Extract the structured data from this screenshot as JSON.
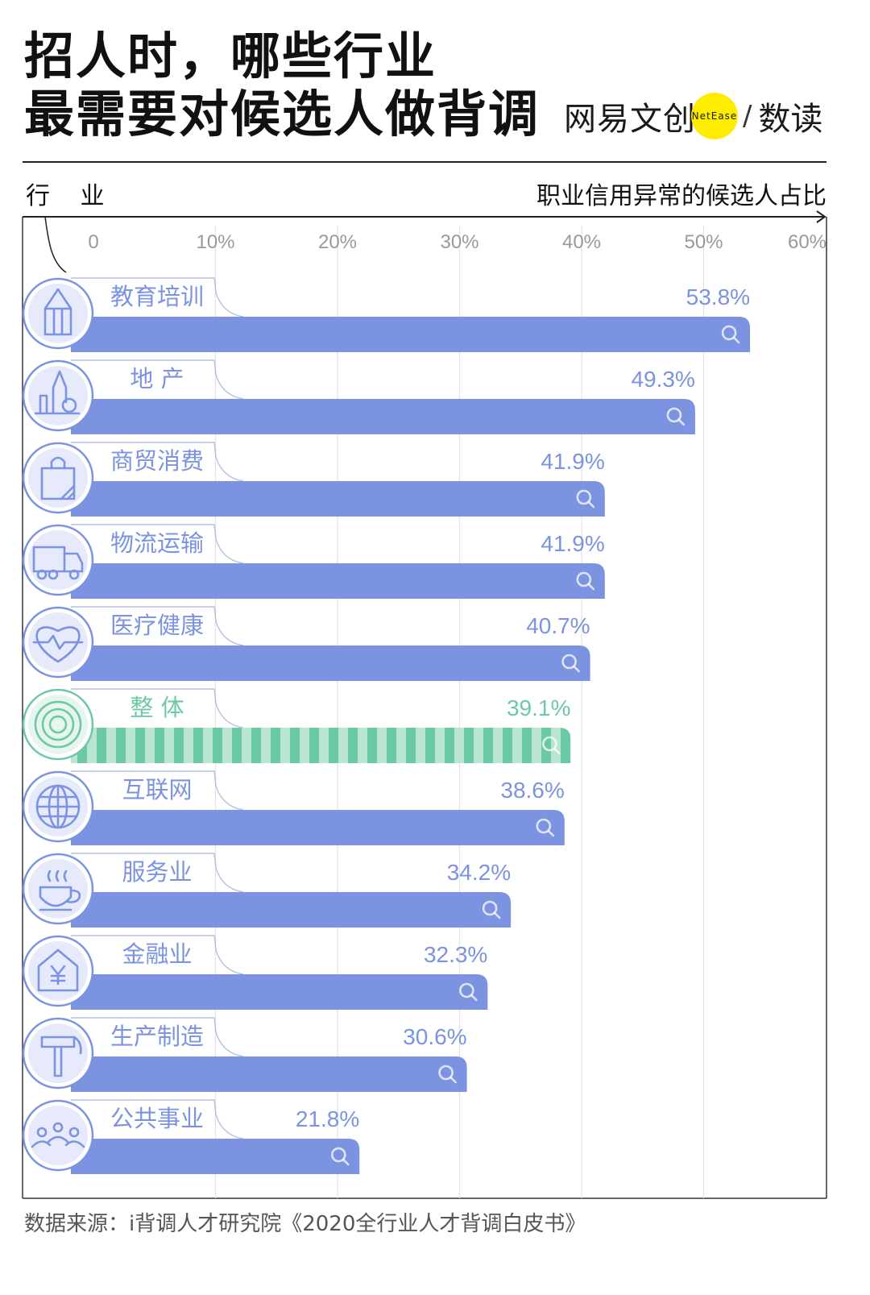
{
  "title_line1": "招人时，哪些行业",
  "title_line2": "最需要对候选人做背调",
  "brand": {
    "name": "网易文创",
    "badge": "NetEase",
    "slash": "/",
    "sub": "数读"
  },
  "header": {
    "left": "行 业",
    "right": "职业信用异常的候选人占比"
  },
  "source": "数据来源：i背调人才研究院《2020全行业人才背调白皮书》",
  "colors": {
    "bar": "#7b93e0",
    "label": "#7b93e0",
    "highlight": "#6dc9a4",
    "highlight_light": "#b8e6d2"
  },
  "chart_data": {
    "type": "bar",
    "orientation": "horizontal",
    "xlabel": "职业信用异常的候选人占比",
    "ylabel": "行 业",
    "xlim": [
      0,
      60
    ],
    "xticks": [
      "0",
      "10%",
      "20%",
      "30%",
      "40%",
      "50%",
      "60%"
    ],
    "grid": true,
    "categories": [
      "教育培训",
      "地 产",
      "商贸消费",
      "物流运输",
      "医疗健康",
      "整 体",
      "互联网",
      "服务业",
      "金融业",
      "生产制造",
      "公共事业"
    ],
    "values": [
      53.8,
      49.3,
      41.9,
      41.9,
      40.7,
      39.1,
      38.6,
      34.2,
      32.3,
      30.6,
      21.8
    ],
    "value_labels": [
      "53.8%",
      "49.3%",
      "41.9%",
      "41.9%",
      "40.7%",
      "39.1%",
      "38.6%",
      "34.2%",
      "32.3%",
      "30.6%",
      "21.8%"
    ],
    "icons": [
      "pencil-icon",
      "city-icon",
      "shopping-bag-icon",
      "truck-icon",
      "heart-icon",
      "target-icon",
      "globe-icon",
      "coffee-cup-icon",
      "bank-yen-icon",
      "hammer-icon",
      "people-icon"
    ],
    "highlight_index": 5
  }
}
